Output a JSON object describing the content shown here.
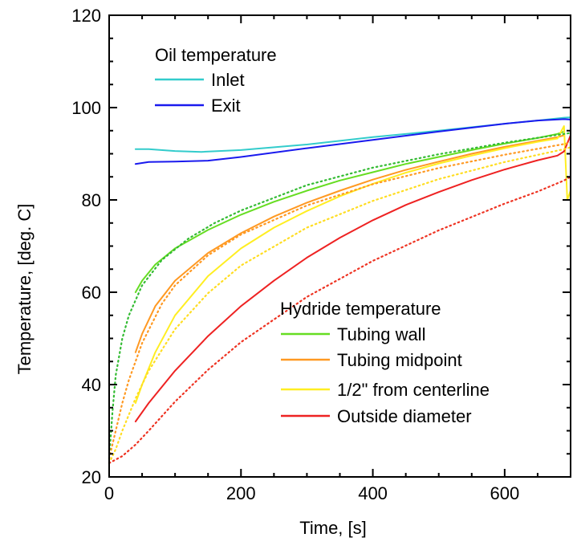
{
  "chart_data": {
    "type": "line",
    "title": "",
    "xlabel": "Time, [s]",
    "ylabel": "Temperature, [deg. C]",
    "xlim": [
      0,
      700
    ],
    "ylim": [
      20,
      120
    ],
    "xticks": [
      0,
      200,
      400,
      600
    ],
    "yticks": [
      20,
      40,
      60,
      80,
      100,
      120
    ],
    "grid": false,
    "legends": [
      {
        "title": "Oil temperature",
        "placement": "top-left",
        "entries": [
          "Inlet",
          "Exit"
        ]
      },
      {
        "title": "Hydride temperature",
        "placement": "center-right",
        "entries": [
          "Tubing wall",
          "Tubing midpoint",
          "1/2\" from centerline",
          "Outside diameter"
        ]
      }
    ],
    "series": [
      {
        "name": "Inlet",
        "color": "#33cccc",
        "style": "solid",
        "x": [
          40,
          60,
          100,
          140,
          200,
          300,
          400,
          500,
          600,
          650,
          690,
          700
        ],
        "y": [
          91.0,
          91.0,
          90.6,
          90.4,
          90.8,
          92.0,
          93.6,
          95.0,
          96.5,
          97.2,
          97.8,
          97.9
        ]
      },
      {
        "name": "Exit",
        "color": "#1a1aee",
        "style": "solid",
        "x": [
          40,
          60,
          100,
          150,
          200,
          300,
          400,
          500,
          600,
          650,
          690,
          700
        ],
        "y": [
          87.8,
          88.2,
          88.3,
          88.5,
          89.3,
          91.2,
          93.0,
          94.8,
          96.5,
          97.2,
          97.5,
          97.4
        ]
      },
      {
        "name": "Tubing wall",
        "color": "#66dd22",
        "style": "solid",
        "x": [
          40,
          50,
          70,
          100,
          150,
          200,
          250,
          300,
          350,
          400,
          450,
          500,
          550,
          600,
          650,
          680,
          690
        ],
        "y": [
          60,
          62.5,
          66,
          69.5,
          73.5,
          76.8,
          79.6,
          82.0,
          84.2,
          86.0,
          87.8,
          89.3,
          90.8,
          92.2,
          93.4,
          94.3,
          94.8
        ]
      },
      {
        "name": "Tubing midpoint",
        "color": "#ff9922",
        "style": "solid",
        "x": [
          40,
          50,
          70,
          100,
          150,
          200,
          250,
          300,
          350,
          400,
          450,
          500,
          550,
          600,
          650,
          680,
          690
        ],
        "y": [
          47,
          51,
          57,
          62.5,
          68.5,
          72.8,
          76.4,
          79.4,
          82.0,
          84.4,
          86.5,
          88.3,
          90.0,
          91.5,
          92.8,
          93.6,
          94.0
        ]
      },
      {
        "name": "1/2\" from centerline",
        "color": "#ffee22",
        "style": "solid",
        "x": [
          40,
          50,
          70,
          100,
          150,
          200,
          250,
          300,
          350,
          400,
          450,
          500,
          550,
          600,
          650,
          680,
          690,
          695,
          700
        ],
        "y": [
          36,
          40,
          47,
          55,
          63.5,
          69.5,
          74.0,
          77.6,
          80.8,
          83.5,
          85.9,
          87.9,
          89.6,
          91.2,
          92.6,
          93.3,
          96.0,
          80.0,
          82.0
        ]
      },
      {
        "name": "Outside diameter",
        "color": "#ee2222",
        "style": "solid",
        "x": [
          40,
          60,
          80,
          100,
          150,
          200,
          250,
          300,
          350,
          400,
          450,
          500,
          550,
          600,
          650,
          680,
          690,
          700
        ],
        "y": [
          32,
          36,
          39.5,
          43,
          50.5,
          57,
          62.5,
          67.5,
          71.8,
          75.6,
          78.9,
          81.7,
          84.3,
          86.6,
          88.6,
          89.6,
          90.5,
          94.0
        ]
      },
      {
        "name": "Tubing wall (model)",
        "color": "#33bb33",
        "style": "dotted",
        "x": [
          0,
          5,
          10,
          20,
          30,
          50,
          80,
          120,
          160,
          200,
          300,
          400,
          500,
          600,
          690,
          700
        ],
        "y": [
          24,
          34,
          42,
          50,
          55,
          61.5,
          67,
          71.6,
          75.0,
          77.7,
          83.2,
          87.0,
          89.9,
          92.4,
          94.3,
          94.5
        ]
      },
      {
        "name": "Tubing midpoint (model)",
        "color": "#ff9922",
        "style": "dotted",
        "x": [
          0,
          10,
          20,
          30,
          50,
          80,
          100,
          150,
          200,
          300,
          400,
          500,
          600,
          690,
          700
        ],
        "y": [
          24,
          30,
          36,
          41,
          49,
          57.5,
          61.5,
          68,
          72.5,
          78.8,
          83.4,
          86.9,
          89.8,
          92.1,
          92.4
        ]
      },
      {
        "name": "1/2\" from centerline (model)",
        "color": "#ffdd22",
        "style": "dotted",
        "x": [
          0,
          10,
          20,
          40,
          60,
          100,
          150,
          200,
          300,
          400,
          500,
          600,
          690,
          700
        ],
        "y": [
          23,
          26,
          30,
          37,
          43,
          52,
          59.8,
          65.8,
          74.0,
          79.8,
          84.5,
          88.2,
          91.0,
          91.4
        ]
      },
      {
        "name": "Outside diameter (model)",
        "color": "#ee3322",
        "style": "dotted",
        "x": [
          0,
          20,
          40,
          60,
          100,
          150,
          200,
          300,
          400,
          500,
          600,
          650,
          690,
          700
        ],
        "y": [
          23,
          24.5,
          27,
          30,
          36.3,
          43.2,
          49.2,
          59.0,
          66.8,
          73.4,
          79.2,
          81.8,
          84.2,
          85.0
        ]
      }
    ]
  }
}
